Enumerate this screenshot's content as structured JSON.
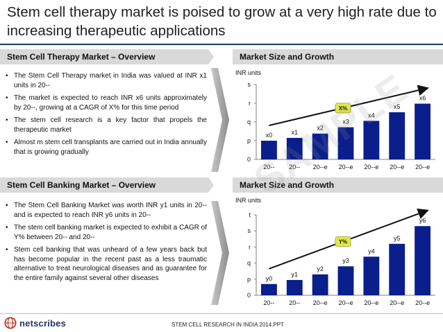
{
  "title": "Stem cell therapy market is poised to grow at a very high rate due to increasing therapeutic applications",
  "sections": {
    "therapy_overview": {
      "heading": "Stem Cell Therapy Market – Overview",
      "bullets": [
        "The Stem Cell Therapy market in India was valued at INR x1 units in 20--",
        "The market is expected to reach INR x6 units approximately by 20--, growing  at a CAGR of X% for this time period",
        "The stem cell research is a key factor that propels the therapeutic market",
        "Almost m stem cell transplants are carried out in India annually that is growing gradually"
      ]
    },
    "banking_overview": {
      "heading": "Stem Cell Banking Market – Overview",
      "bullets": [
        "The Stem Cell Banking Market was worth INR y1 units in 20-- and is expected to reach INR y6 units in 20--",
        "The stem cell banking market is expected to exhibit a CAGR of Y% between 20-- and 20--",
        "Stem cell banking that was unheard of a few years back but has become popular in the recent past as a less traumatic alternative to treat neurological diseases and as guarantee for the entire family against several other diseases"
      ]
    },
    "therapy_growth_heading": "Market Size and Growth",
    "banking_growth_heading": "Market Size and Growth"
  },
  "watermark": "SAMPLE",
  "footer": {
    "logo_text": "netscribes",
    "caption": "STEM CELL RESEARCH IN INDIA 2014.PPT"
  },
  "colors": {
    "bar": "#0a1e8c",
    "accent_badge": "#e3e84a",
    "header_band": "#d9d9d9",
    "title_rule": "#17375e"
  },
  "chart_data": [
    {
      "type": "bar",
      "title": "Market Size and Growth",
      "ylabel": "INR units",
      "categories": [
        "20--",
        "20--",
        "20--e",
        "20--e",
        "20--e",
        "20--e",
        "20--e"
      ],
      "y_tick_labels": [
        "0",
        "p",
        "q",
        "r",
        "s"
      ],
      "ylim": [
        0,
        4
      ],
      "values": [
        1.0,
        1.15,
        1.38,
        1.72,
        2.06,
        2.52,
        2.98
      ],
      "data_labels": [
        "x0",
        "x1",
        "x2",
        "x3",
        "x4",
        "x5",
        "x6"
      ],
      "trend_badge": "X%",
      "trend_arrow": true
    },
    {
      "type": "bar",
      "title": "Market Size and Growth",
      "ylabel": "INR units",
      "categories": [
        "20--",
        "20--",
        "20--e",
        "20--e",
        "20--e",
        "20--e",
        "20--e"
      ],
      "y_tick_labels": [
        "0",
        "p",
        "q",
        "r",
        "s",
        "t"
      ],
      "ylim": [
        0,
        5
      ],
      "values": [
        0.7,
        0.95,
        1.3,
        1.8,
        2.4,
        3.2,
        4.3
      ],
      "data_labels": [
        "y0",
        "y1",
        "y2",
        "y3",
        "y4",
        "y5",
        "y6"
      ],
      "trend_badge": "Y%",
      "trend_arrow": true
    }
  ]
}
